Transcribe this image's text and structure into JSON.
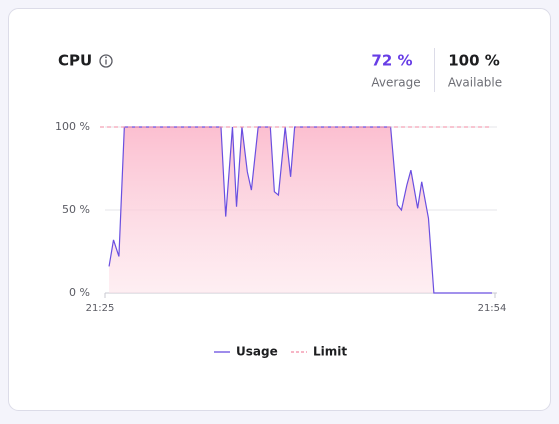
{
  "header": {
    "title": "CPU",
    "average": "72 %",
    "average_label": "Average",
    "available": "100 %",
    "available_label": "Available"
  },
  "chart_data": {
    "type": "line",
    "xlim": [
      0,
      29
    ],
    "xticks": [
      {
        "value": 0,
        "label": "21:25"
      },
      {
        "value": 29,
        "label": "21:54"
      }
    ],
    "ylim": [
      0,
      100
    ],
    "yticks": [
      {
        "value": 0,
        "label": "0 %"
      },
      {
        "value": 50,
        "label": "50 %"
      },
      {
        "value": 100,
        "label": "100 %"
      }
    ],
    "grid": true,
    "series": [
      {
        "name": "Usage",
        "color": "#6a4fe0",
        "x": [
          0.67,
          1.0,
          1.4,
          1.8,
          8.95,
          9.3,
          9.8,
          10.1,
          10.5,
          10.9,
          11.2,
          11.7,
          12.6,
          12.9,
          13.2,
          13.7,
          14.1,
          14.4,
          21.5,
          22.0,
          22.3,
          22.7,
          23.0,
          23.5,
          23.8,
          24.3,
          24.7,
          29
        ],
        "values": [
          16,
          32,
          22,
          100,
          100,
          46,
          100,
          52,
          100,
          73,
          62,
          100,
          100,
          61,
          59,
          100,
          70,
          100,
          100,
          53,
          50,
          65,
          74,
          51,
          67,
          45,
          0,
          0
        ]
      },
      {
        "name": "Limit",
        "color": "#f28ba3",
        "dashed": true,
        "x": [
          0,
          29
        ],
        "values": [
          100,
          100
        ]
      }
    ]
  }
}
